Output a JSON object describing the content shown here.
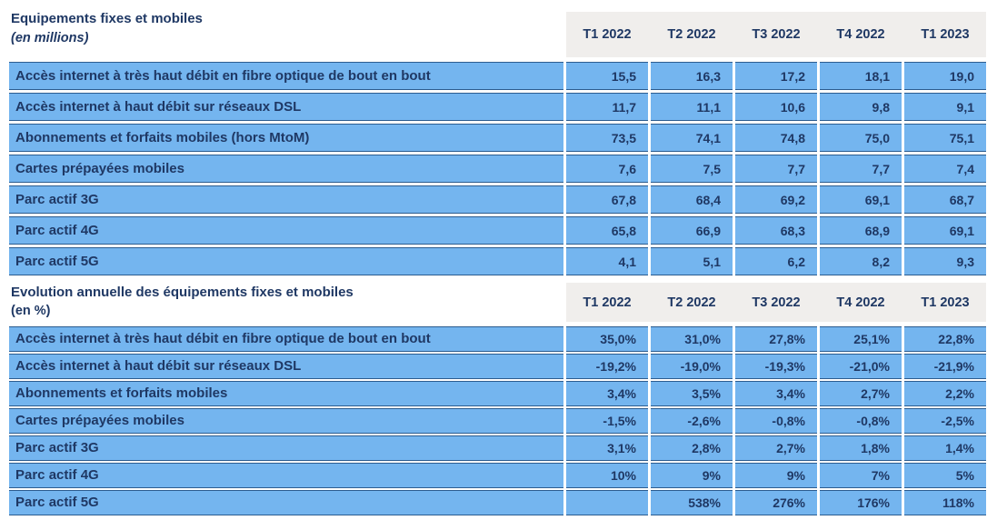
{
  "palette": {
    "row_blue": "#74B5EF",
    "header_gray": "#F0EEEC",
    "text_navy": "#1F3864",
    "border_navy": "#2C5C8F"
  },
  "columns": [
    "T1 2022",
    "T2 2022",
    "T3 2022",
    "T4 2022",
    "T1 2023"
  ],
  "sections": [
    {
      "title": "Equipements fixes et mobiles",
      "subtitle": "(en millions)",
      "rows": [
        {
          "label": "Accès internet à très haut débit en fibre optique de bout en bout",
          "values": [
            "15,5",
            "16,3",
            "17,2",
            "18,1",
            "19,0"
          ]
        },
        {
          "label": "Accès internet à haut débit sur réseaux DSL",
          "values": [
            "11,7",
            "11,1",
            "10,6",
            "9,8",
            "9,1"
          ]
        },
        {
          "label": "Abonnements et forfaits mobiles (hors MtoM)",
          "values": [
            "73,5",
            "74,1",
            "74,8",
            "75,0",
            "75,1"
          ]
        },
        {
          "label": "Cartes prépayées mobiles",
          "values": [
            "7,6",
            "7,5",
            "7,7",
            "7,7",
            "7,4"
          ]
        },
        {
          "label": "Parc actif 3G",
          "values": [
            "67,8",
            "68,4",
            "69,2",
            "69,1",
            "68,7"
          ]
        },
        {
          "label": "Parc actif 4G",
          "values": [
            "65,8",
            "66,9",
            "68,3",
            "68,9",
            "69,1"
          ]
        },
        {
          "label": "Parc actif 5G",
          "values": [
            "4,1",
            "5,1",
            "6,2",
            "8,2",
            "9,3"
          ]
        }
      ]
    },
    {
      "title": "Evolution annuelle des équipements fixes et mobiles",
      "subtitle": "(en %)",
      "rows": [
        {
          "label": "Accès internet à très haut débit en fibre optique de bout en bout",
          "values": [
            "35,0%",
            "31,0%",
            "27,8%",
            "25,1%",
            "22,8%"
          ]
        },
        {
          "label": "Accès internet à haut débit sur réseaux DSL",
          "values": [
            "-19,2%",
            "-19,0%",
            "-19,3%",
            "-21,0%",
            "-21,9%"
          ]
        },
        {
          "label": "Abonnements et forfaits mobiles",
          "values": [
            "3,4%",
            "3,5%",
            "3,4%",
            "2,7%",
            "2,2%"
          ]
        },
        {
          "label": "Cartes prépayées mobiles",
          "values": [
            "-1,5%",
            "-2,6%",
            "-0,8%",
            "-0,8%",
            "-2,5%"
          ]
        },
        {
          "label": "Parc actif 3G",
          "values": [
            "3,1%",
            "2,8%",
            "2,7%",
            "1,8%",
            "1,4%"
          ]
        },
        {
          "label": "Parc actif 4G",
          "values": [
            "10%",
            "9%",
            "9%",
            "7%",
            "5%"
          ]
        },
        {
          "label": "Parc actif 5G",
          "values": [
            "",
            "538%",
            "276%",
            "176%",
            "118%"
          ]
        }
      ]
    }
  ]
}
